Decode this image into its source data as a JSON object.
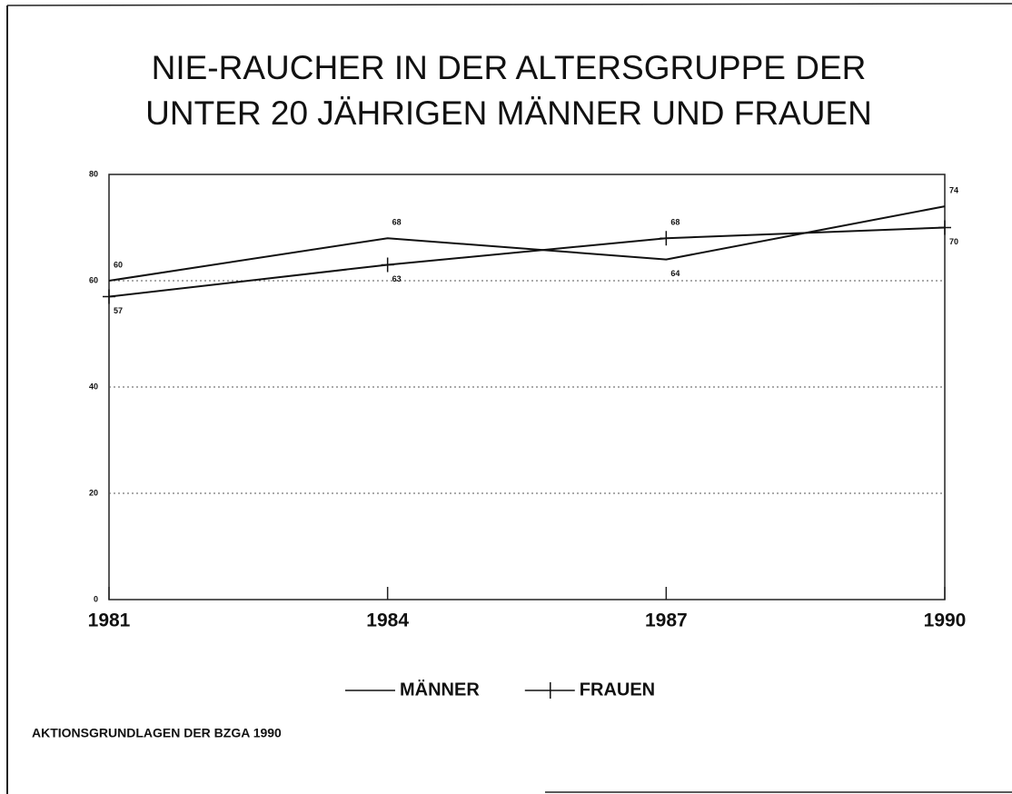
{
  "chart_data": {
    "type": "line",
    "title": [
      "NIE-RAUCHER IN DER ALTERSGRUPPE DER",
      "UNTER 20 JÄHRIGEN MÄNNER UND FRAUEN"
    ],
    "x": [
      1981,
      1984,
      1987,
      1990
    ],
    "series": [
      {
        "name": "MÄNNER",
        "color": "#111111",
        "values": [
          60,
          68,
          64,
          74
        ]
      },
      {
        "name": "FRAUEN",
        "color": "#111111",
        "values": [
          57,
          63,
          68,
          70
        ]
      }
    ],
    "xlim": [
      1981,
      1990
    ],
    "xticks": [
      1981,
      1984,
      1987,
      1990
    ],
    "ylim": [
      0,
      80
    ],
    "yticks": [
      0,
      20,
      40,
      60,
      80
    ],
    "grid": true,
    "legend": "bottom",
    "source": "AKTIONSGRUNDLAGEN DER BZGA 1990"
  }
}
